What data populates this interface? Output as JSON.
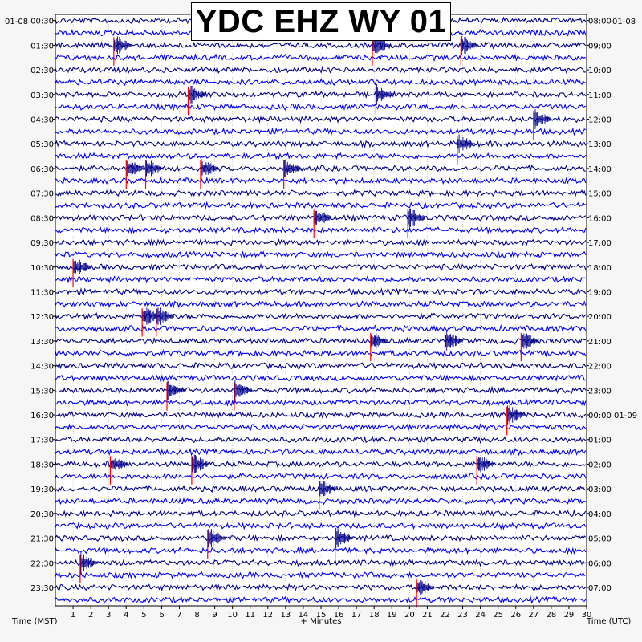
{
  "chart_data": {
    "type": "line",
    "title": "YDC EHZ WY 01",
    "date_left": "01-08",
    "date_right": "01-08",
    "xlabel": "+ Minutes",
    "left_axis_label": "Time (MST)",
    "right_axis_label": "Time (UTC)",
    "xlim": [
      0,
      30
    ],
    "x_ticks": [
      "1",
      "2",
      "3",
      "4",
      "5",
      "6",
      "7",
      "8",
      "9",
      "10",
      "11",
      "12",
      "13",
      "14",
      "15",
      "16",
      "17",
      "18",
      "19",
      "20",
      "21",
      "22",
      "23",
      "24",
      "25",
      "26",
      "27",
      "28",
      "29",
      "30"
    ],
    "left_ticks": [
      "00:30",
      "01:30",
      "02:30",
      "03:30",
      "04:30",
      "05:30",
      "06:30",
      "07:30",
      "08:30",
      "09:30",
      "10:30",
      "11:30",
      "12:30",
      "13:30",
      "14:30",
      "15:30",
      "16:30",
      "17:30",
      "18:30",
      "19:30",
      "20:30",
      "21:30",
      "22:30",
      "23:30"
    ],
    "right_ticks": [
      "08:00",
      "09:00",
      "10:00",
      "11:00",
      "12:00",
      "13:00",
      "14:00",
      "15:00",
      "16:00",
      "17:00",
      "18:00",
      "19:00",
      "20:00",
      "21:00",
      "22:00",
      "23:00",
      "00:00 01-09",
      "01:00",
      "02:00",
      "03:00",
      "04:00",
      "05:00",
      "06:00",
      "07:00"
    ],
    "trace_count": 48,
    "trace_colors": [
      "#00008b",
      "#0000ff"
    ],
    "pick_color": "#ff0000",
    "grid": true,
    "events": [
      {
        "minute": 3.3,
        "hour_index": 1
      },
      {
        "minute": 17.9,
        "hour_index": 1
      },
      {
        "minute": 22.9,
        "hour_index": 1
      },
      {
        "minute": 7.5,
        "hour_index": 3
      },
      {
        "minute": 18.1,
        "hour_index": 3
      },
      {
        "minute": 27.0,
        "hour_index": 4
      },
      {
        "minute": 22.7,
        "hour_index": 5
      },
      {
        "minute": 4.0,
        "hour_index": 6
      },
      {
        "minute": 5.1,
        "hour_index": 6
      },
      {
        "minute": 8.2,
        "hour_index": 6
      },
      {
        "minute": 12.9,
        "hour_index": 6
      },
      {
        "minute": 14.6,
        "hour_index": 8
      },
      {
        "minute": 19.9,
        "hour_index": 8
      },
      {
        "minute": 1.0,
        "hour_index": 10
      },
      {
        "minute": 4.9,
        "hour_index": 12
      },
      {
        "minute": 5.7,
        "hour_index": 12
      },
      {
        "minute": 17.8,
        "hour_index": 13
      },
      {
        "minute": 22.0,
        "hour_index": 13
      },
      {
        "minute": 26.3,
        "hour_index": 13
      },
      {
        "minute": 6.3,
        "hour_index": 15
      },
      {
        "minute": 10.1,
        "hour_index": 15
      },
      {
        "minute": 25.5,
        "hour_index": 16
      },
      {
        "minute": 3.1,
        "hour_index": 18
      },
      {
        "minute": 7.7,
        "hour_index": 18
      },
      {
        "minute": 23.8,
        "hour_index": 18
      },
      {
        "minute": 14.9,
        "hour_index": 19
      },
      {
        "minute": 15.8,
        "hour_index": 21
      },
      {
        "minute": 8.6,
        "hour_index": 21
      },
      {
        "minute": 1.4,
        "hour_index": 22
      },
      {
        "minute": 20.4,
        "hour_index": 23
      }
    ]
  }
}
